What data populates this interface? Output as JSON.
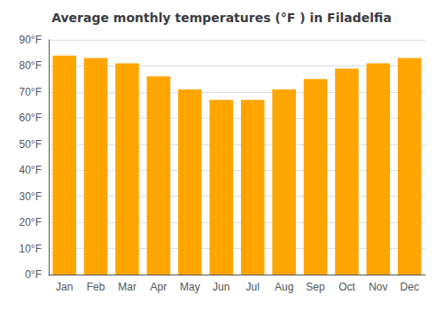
{
  "chart_data": {
    "type": "bar",
    "title": "Average monthly temperatures (°F ) in Filadelfia",
    "categories": [
      "Jan",
      "Feb",
      "Mar",
      "Apr",
      "May",
      "Jun",
      "Jul",
      "Aug",
      "Sep",
      "Oct",
      "Nov",
      "Dec"
    ],
    "values": [
      84,
      83,
      81,
      76,
      71,
      67,
      67,
      71,
      75,
      79,
      81,
      83
    ],
    "color": "#FFA500",
    "ylim": [
      0,
      90
    ],
    "yticks": [
      {
        "value": 0,
        "label": "0°F"
      },
      {
        "value": 10,
        "label": "10°F"
      },
      {
        "value": 20,
        "label": "20°F"
      },
      {
        "value": 30,
        "label": "30°F"
      },
      {
        "value": 40,
        "label": "40°F"
      },
      {
        "value": 50,
        "label": "50°F"
      },
      {
        "value": 60,
        "label": "60°F"
      },
      {
        "value": 70,
        "label": "70°F"
      },
      {
        "value": 80,
        "label": "80°F"
      },
      {
        "value": 90,
        "label": "90°F"
      }
    ],
    "grid": true
  }
}
